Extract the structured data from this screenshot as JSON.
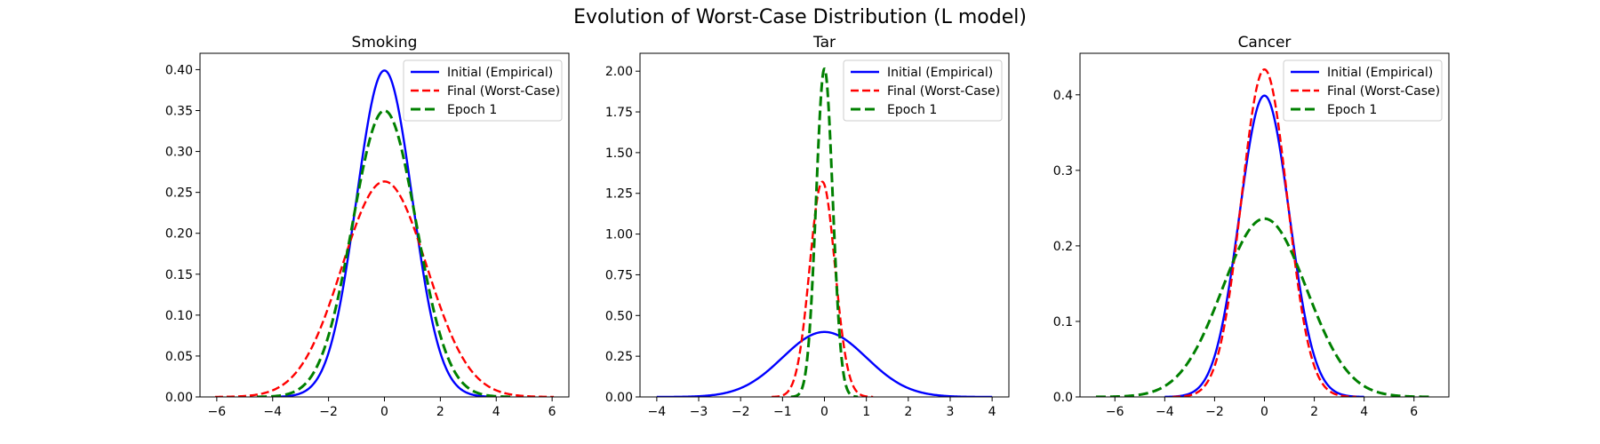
{
  "figure_title": "Evolution of Worst-Case Distribution (L model)",
  "chart_data": [
    {
      "type": "line",
      "title": "Smoking",
      "xlabel": "",
      "ylabel": "",
      "xlim": [
        -6.6,
        6.6
      ],
      "ylim": [
        0,
        0.42
      ],
      "xticks": [
        -6,
        -4,
        -2,
        0,
        2,
        4,
        6
      ],
      "xtick_labels": [
        "−6",
        "−4",
        "−2",
        "0",
        "2",
        "4",
        "6"
      ],
      "yticks": [
        0.0,
        0.05,
        0.1,
        0.15,
        0.2,
        0.25,
        0.3,
        0.35,
        0.4
      ],
      "ytick_labels": [
        "0.00",
        "0.05",
        "0.10",
        "0.15",
        "0.20",
        "0.25",
        "0.30",
        "0.35",
        "0.40"
      ],
      "legend_position": "top-right",
      "series": [
        {
          "name": "Initial (Empirical)",
          "color": "#0000ff",
          "style": "solid",
          "distribution": "normal",
          "mean": 0,
          "std": 1.0,
          "x_range": [
            -4,
            4
          ]
        },
        {
          "name": "Final (Worst-Case)",
          "color": "#ff0000",
          "style": "dashed",
          "distribution": "normal",
          "mean": 0,
          "std": 1.515,
          "x_range": [
            -6.06,
            6.06
          ]
        },
        {
          "name": "Epoch 1",
          "color": "#008000",
          "style": "dashed",
          "distribution": "normal",
          "mean": 0,
          "std": 1.14,
          "x_range": [
            -4.56,
            4.56
          ]
        }
      ]
    },
    {
      "type": "line",
      "title": "Tar",
      "xlabel": "",
      "ylabel": "",
      "xlim": [
        -4.4,
        4.4
      ],
      "ylim": [
        0,
        2.11
      ],
      "xticks": [
        -4,
        -3,
        -2,
        -1,
        0,
        1,
        2,
        3,
        4
      ],
      "xtick_labels": [
        "−4",
        "−3",
        "−2",
        "−1",
        "0",
        "1",
        "2",
        "3",
        "4"
      ],
      "yticks": [
        0.0,
        0.25,
        0.5,
        0.75,
        1.0,
        1.25,
        1.5,
        1.75,
        2.0
      ],
      "ytick_labels": [
        "0.00",
        "0.25",
        "0.50",
        "0.75",
        "1.00",
        "1.25",
        "1.50",
        "1.75",
        "2.00"
      ],
      "legend_position": "top-right",
      "series": [
        {
          "name": "Initial (Empirical)",
          "color": "#0000ff",
          "style": "solid",
          "distribution": "normal",
          "mean": 0,
          "std": 1.0,
          "x_range": [
            -4,
            4
          ]
        },
        {
          "name": "Final (Worst-Case)",
          "color": "#ff0000",
          "style": "dashed",
          "distribution": "normal",
          "mean": -0.05,
          "std": 0.302,
          "x_range": [
            -1.26,
            1.16
          ]
        },
        {
          "name": "Epoch 1",
          "color": "#008000",
          "style": "dashed",
          "distribution": "normal",
          "mean": 0,
          "std": 0.198,
          "x_range": [
            -0.8,
            0.8
          ]
        }
      ]
    },
    {
      "type": "line",
      "title": "Cancer",
      "xlabel": "",
      "ylabel": "",
      "xlim": [
        -7.4,
        7.4
      ],
      "ylim": [
        0,
        0.455
      ],
      "xticks": [
        -6,
        -4,
        -2,
        0,
        2,
        4,
        6
      ],
      "xtick_labels": [
        "−6",
        "−4",
        "−2",
        "0",
        "2",
        "4",
        "6"
      ],
      "yticks": [
        0.0,
        0.1,
        0.2,
        0.3,
        0.4
      ],
      "ytick_labels": [
        "0.0",
        "0.1",
        "0.2",
        "0.3",
        "0.4"
      ],
      "legend_position": "top-right",
      "series": [
        {
          "name": "Initial (Empirical)",
          "color": "#0000ff",
          "style": "solid",
          "distribution": "normal",
          "mean": 0,
          "std": 1.0,
          "x_range": [
            -4,
            4
          ]
        },
        {
          "name": "Final (Worst-Case)",
          "color": "#ff0000",
          "style": "dashed",
          "distribution": "normal",
          "mean": 0,
          "std": 0.92,
          "x_range": [
            -3.68,
            3.68
          ]
        },
        {
          "name": "Epoch 1",
          "color": "#008000",
          "style": "dashed",
          "distribution": "normal",
          "mean": 0,
          "std": 1.69,
          "x_range": [
            -6.76,
            6.76
          ]
        }
      ]
    }
  ]
}
